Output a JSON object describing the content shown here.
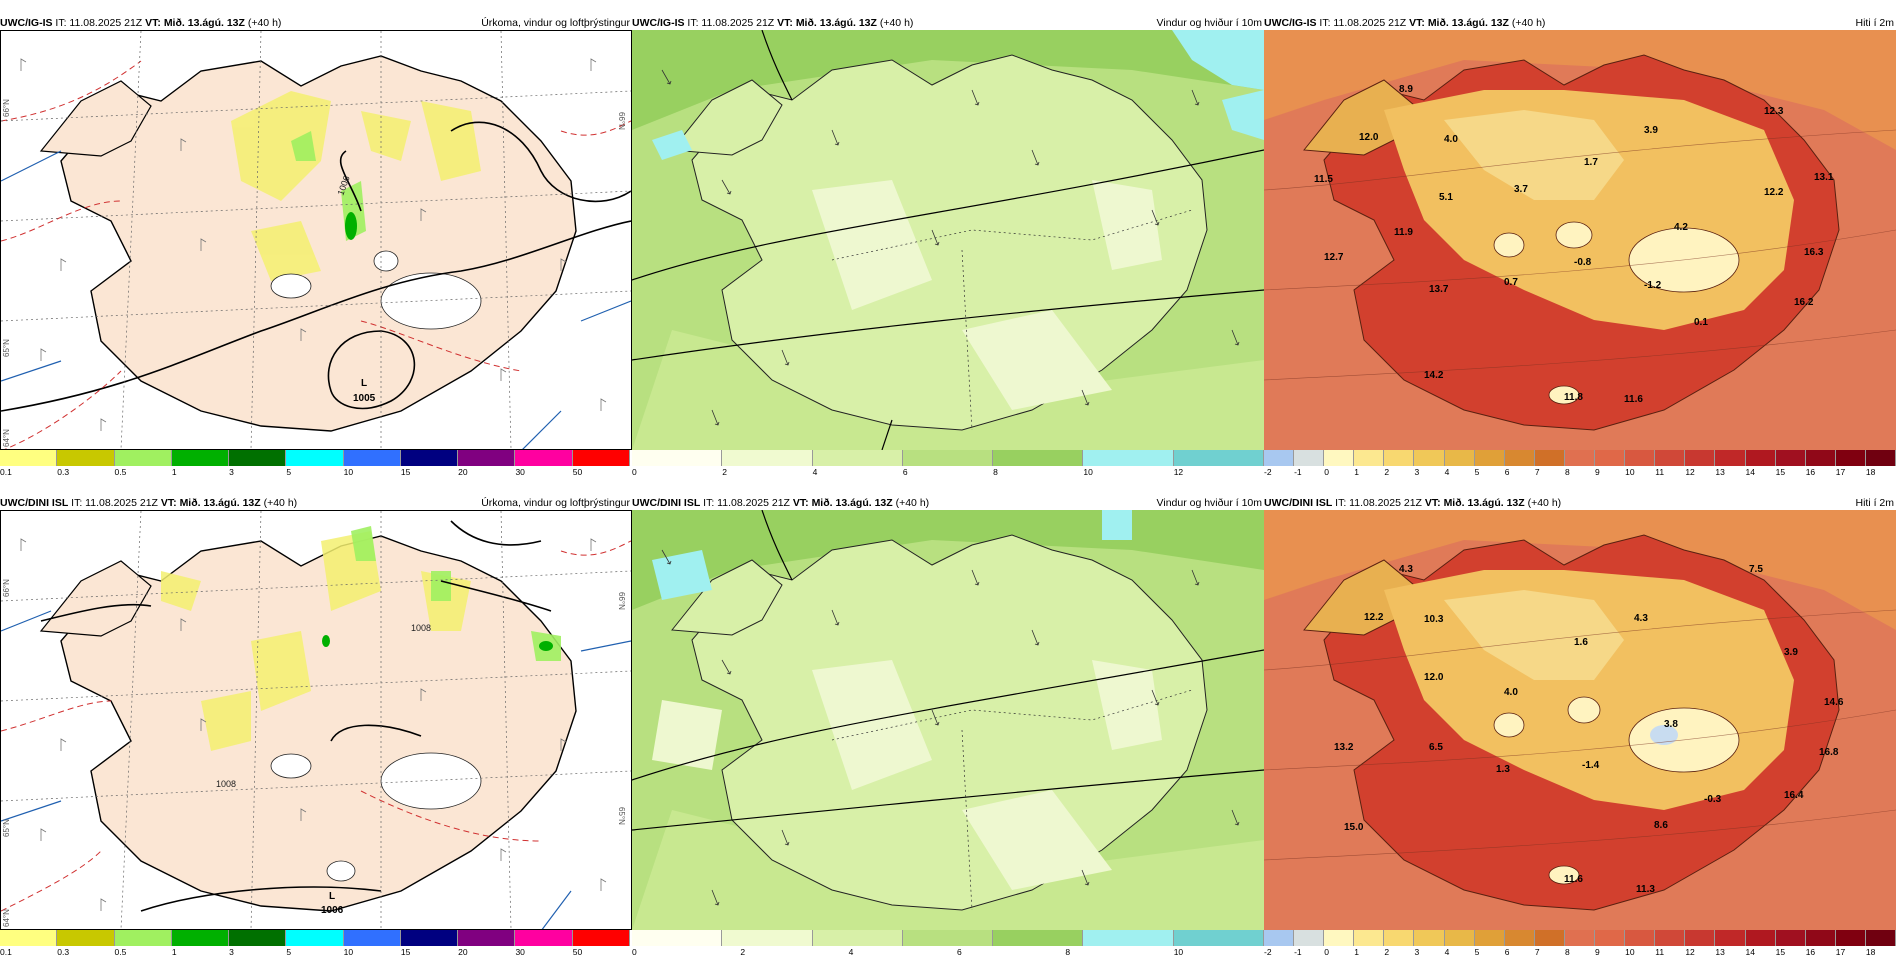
{
  "rows": [
    {
      "model": "UWC/IG-IS",
      "run": "IT: 11.08.2025 21Z",
      "vt_label": "VT:",
      "valid": "Mið. 13.ágú. 13Z",
      "lead": "(+40 h)",
      "precip": {
        "title": "Úrkoma, vindur og loftþrýstingur",
        "low_letter": "L",
        "low_value": "1005",
        "isobars": [
          "1006"
        ],
        "lat_labels": [
          "66°N",
          "65°N",
          "64°N"
        ]
      },
      "wind": {
        "title": "Vindur og hviður í 10m"
      },
      "temp": {
        "title": "Hiti í 2m",
        "labels": [
          "8.9",
          "12.0",
          "4.0",
          "3.9",
          "12.3",
          "11.5",
          "1.7",
          "13.1",
          "3.7",
          "5.1",
          "12.2",
          "11.9",
          "4.2",
          "12.7",
          "16.3",
          "13.7",
          "0.7",
          "-0.8",
          "-1.2",
          "16.2",
          "0.1",
          "14.2",
          "11.8",
          "11.6"
        ]
      },
      "wind_scale": {
        "ticks": [
          "0",
          "2",
          "4",
          "6",
          "8",
          "10",
          "12"
        ]
      }
    },
    {
      "model": "UWC/DINI ISL",
      "run": "IT: 11.08.2025 21Z",
      "vt_label": "VT:",
      "valid": "Mið. 13.ágú. 13Z",
      "lead": "(+40 h)",
      "precip": {
        "title": "Úrkoma, vindur og loftþrýstingur",
        "low_letter": "L",
        "low_value": "1006",
        "isobars": [
          "1008",
          "1008"
        ],
        "lat_labels": [
          "66°N",
          "65°N",
          "64°N"
        ]
      },
      "wind": {
        "title": "Vindur og hviður í 10m"
      },
      "temp": {
        "title": "Hiti í 2m",
        "labels": [
          "4.3",
          "7.5",
          "12.2",
          "10.3",
          "4.3",
          "1.6",
          "3.9",
          "12.0",
          "4.0",
          "14.6",
          "3.8",
          "16.8",
          "13.2",
          "6.5",
          "1.3",
          "-1.4",
          "-0.3",
          "16.4",
          "15.0",
          "8.6",
          "11.6",
          "11.3"
        ]
      },
      "wind_scale": {
        "ticks": [
          "0",
          "2",
          "4",
          "6",
          "8",
          "10"
        ]
      }
    }
  ],
  "precip_scale": {
    "ticks": [
      "0.1",
      "0.3",
      "0.5",
      "1",
      "3",
      "5",
      "10",
      "15",
      "20",
      "30",
      "50"
    ],
    "colors": [
      "#ffff80",
      "#c8c800",
      "#a0f060",
      "#00b000",
      "#007000",
      "#00ffff",
      "#3070ff",
      "#000080",
      "#800080",
      "#ff00a0",
      "#ff0000"
    ]
  },
  "wind_scale_colors": [
    "#fffff0",
    "#f0fad0",
    "#d8f0a8",
    "#b8e080",
    "#98d060",
    "#a0f0f0",
    "#70d0d0"
  ],
  "temp_scale": {
    "ticks": [
      "-2",
      "-1",
      "0",
      "1",
      "2",
      "3",
      "4",
      "5",
      "6",
      "7",
      "8",
      "9",
      "10",
      "11",
      "12",
      "13",
      "14",
      "15",
      "16",
      "17",
      "18"
    ],
    "colors": [
      "#a8c8f0",
      "#d8e0e0",
      "#fff8c0",
      "#fce890",
      "#f8d870",
      "#f0c858",
      "#e8b848",
      "#e0a038",
      "#d88830",
      "#d07028",
      "#e07050",
      "#e06848",
      "#d85840",
      "#d04838",
      "#c83830",
      "#c02828",
      "#b01820",
      "#a01020",
      "#900818",
      "#800010",
      "#700010"
    ]
  },
  "colors": {
    "land_beige": "#fbe6d4",
    "sea_white": "#ffffff",
    "wind_light": "#eef8d0",
    "wind_mid": "#c8e890",
    "wind_dark": "#94c860",
    "temp_sea": "#e07a58",
    "temp_land": "#d2402e",
    "temp_highland": "#f2c060",
    "glacier": "#fff3c0"
  }
}
